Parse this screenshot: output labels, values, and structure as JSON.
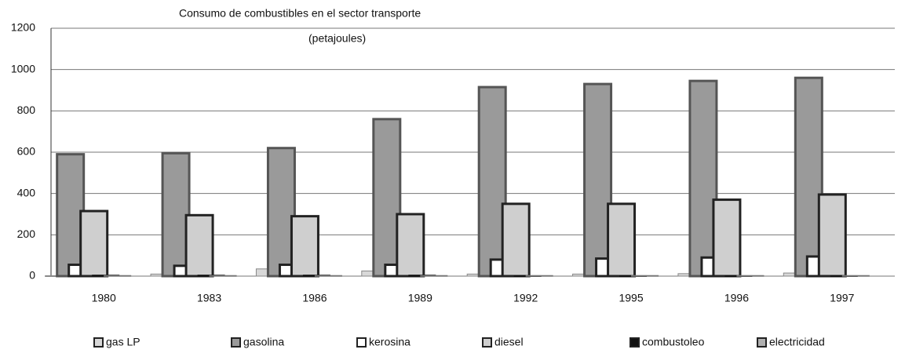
{
  "chart_data": {
    "type": "bar",
    "title": "Consumo de combustibles en el sector transporte",
    "subtitle": "(petajoules)",
    "categories": [
      "1980",
      "1983",
      "1986",
      "1989",
      "1992",
      "1995",
      "1996",
      "1997"
    ],
    "series": [
      {
        "name": "gas LP",
        "color": "#d8d8d8",
        "values": [
          2,
          10,
          35,
          25,
          10,
          10,
          12,
          15
        ]
      },
      {
        "name": "gasolina",
        "color": "#9a9a9a",
        "values": [
          590,
          595,
          620,
          760,
          915,
          930,
          945,
          960
        ]
      },
      {
        "name": "kerosina",
        "color": "#ffffff",
        "values": [
          55,
          50,
          55,
          55,
          80,
          85,
          90,
          95
        ]
      },
      {
        "name": "diesel",
        "color": "#cfcfcf",
        "values": [
          315,
          295,
          290,
          300,
          350,
          350,
          370,
          395
        ]
      },
      {
        "name": "combustoleo",
        "color": "#111111",
        "values": [
          5,
          5,
          5,
          5,
          2,
          2,
          2,
          2
        ]
      },
      {
        "name": "electricidad",
        "color": "#b0b0b0",
        "values": [
          3,
          3,
          3,
          3,
          3,
          3,
          3,
          3
        ]
      }
    ],
    "ylim": [
      0,
      1200
    ],
    "yticks": [
      0,
      200,
      400,
      600,
      800,
      1000,
      1200
    ],
    "grid": true,
    "legend": "bottom"
  }
}
